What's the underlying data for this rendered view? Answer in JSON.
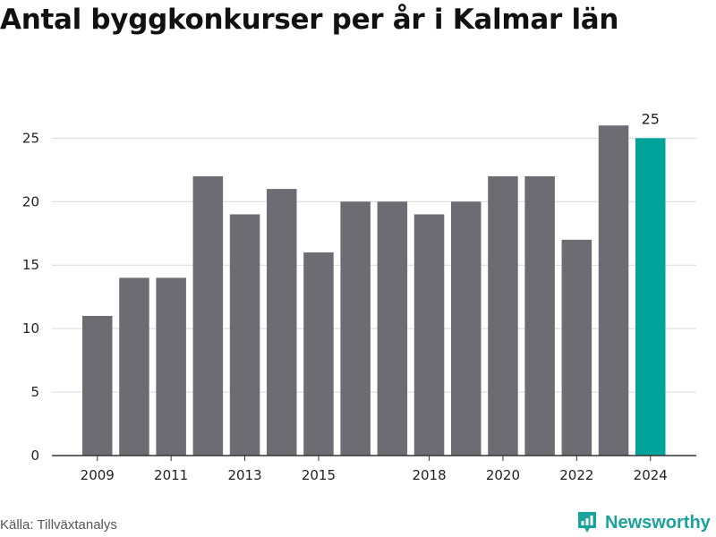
{
  "title": "Antal byggkonkurser per år i Kalmar län",
  "source": "Källa: Tillväxtanalys",
  "brand": {
    "name": "Newsworthy",
    "icon": "newsworthy-logo-icon",
    "color": "#1aa39a"
  },
  "colors": {
    "bar": "#6d6c72",
    "highlight": "#00a39a",
    "grid": "#d9d9d9",
    "axis": "#333333"
  },
  "chart_data": {
    "type": "bar",
    "categories": [
      "2009",
      "2010",
      "2011",
      "2012",
      "2013",
      "2014",
      "2015",
      "2016",
      "2017",
      "2018",
      "2019",
      "2020",
      "2021",
      "2022",
      "2023",
      "2024"
    ],
    "values": [
      11,
      14,
      14,
      22,
      19,
      21,
      16,
      20,
      20,
      19,
      20,
      22,
      22,
      17,
      26,
      25
    ],
    "x_tick_labels": [
      "2009",
      "2011",
      "2013",
      "2015",
      "2018",
      "2020",
      "2022",
      "2024"
    ],
    "y_ticks": [
      0,
      5,
      10,
      15,
      20,
      25
    ],
    "ylim": [
      0,
      27
    ],
    "highlight_category": "2024",
    "data_labels": [
      {
        "category": "2024",
        "text": "25"
      }
    ],
    "xlabel": "",
    "ylabel": "",
    "grid": true
  }
}
